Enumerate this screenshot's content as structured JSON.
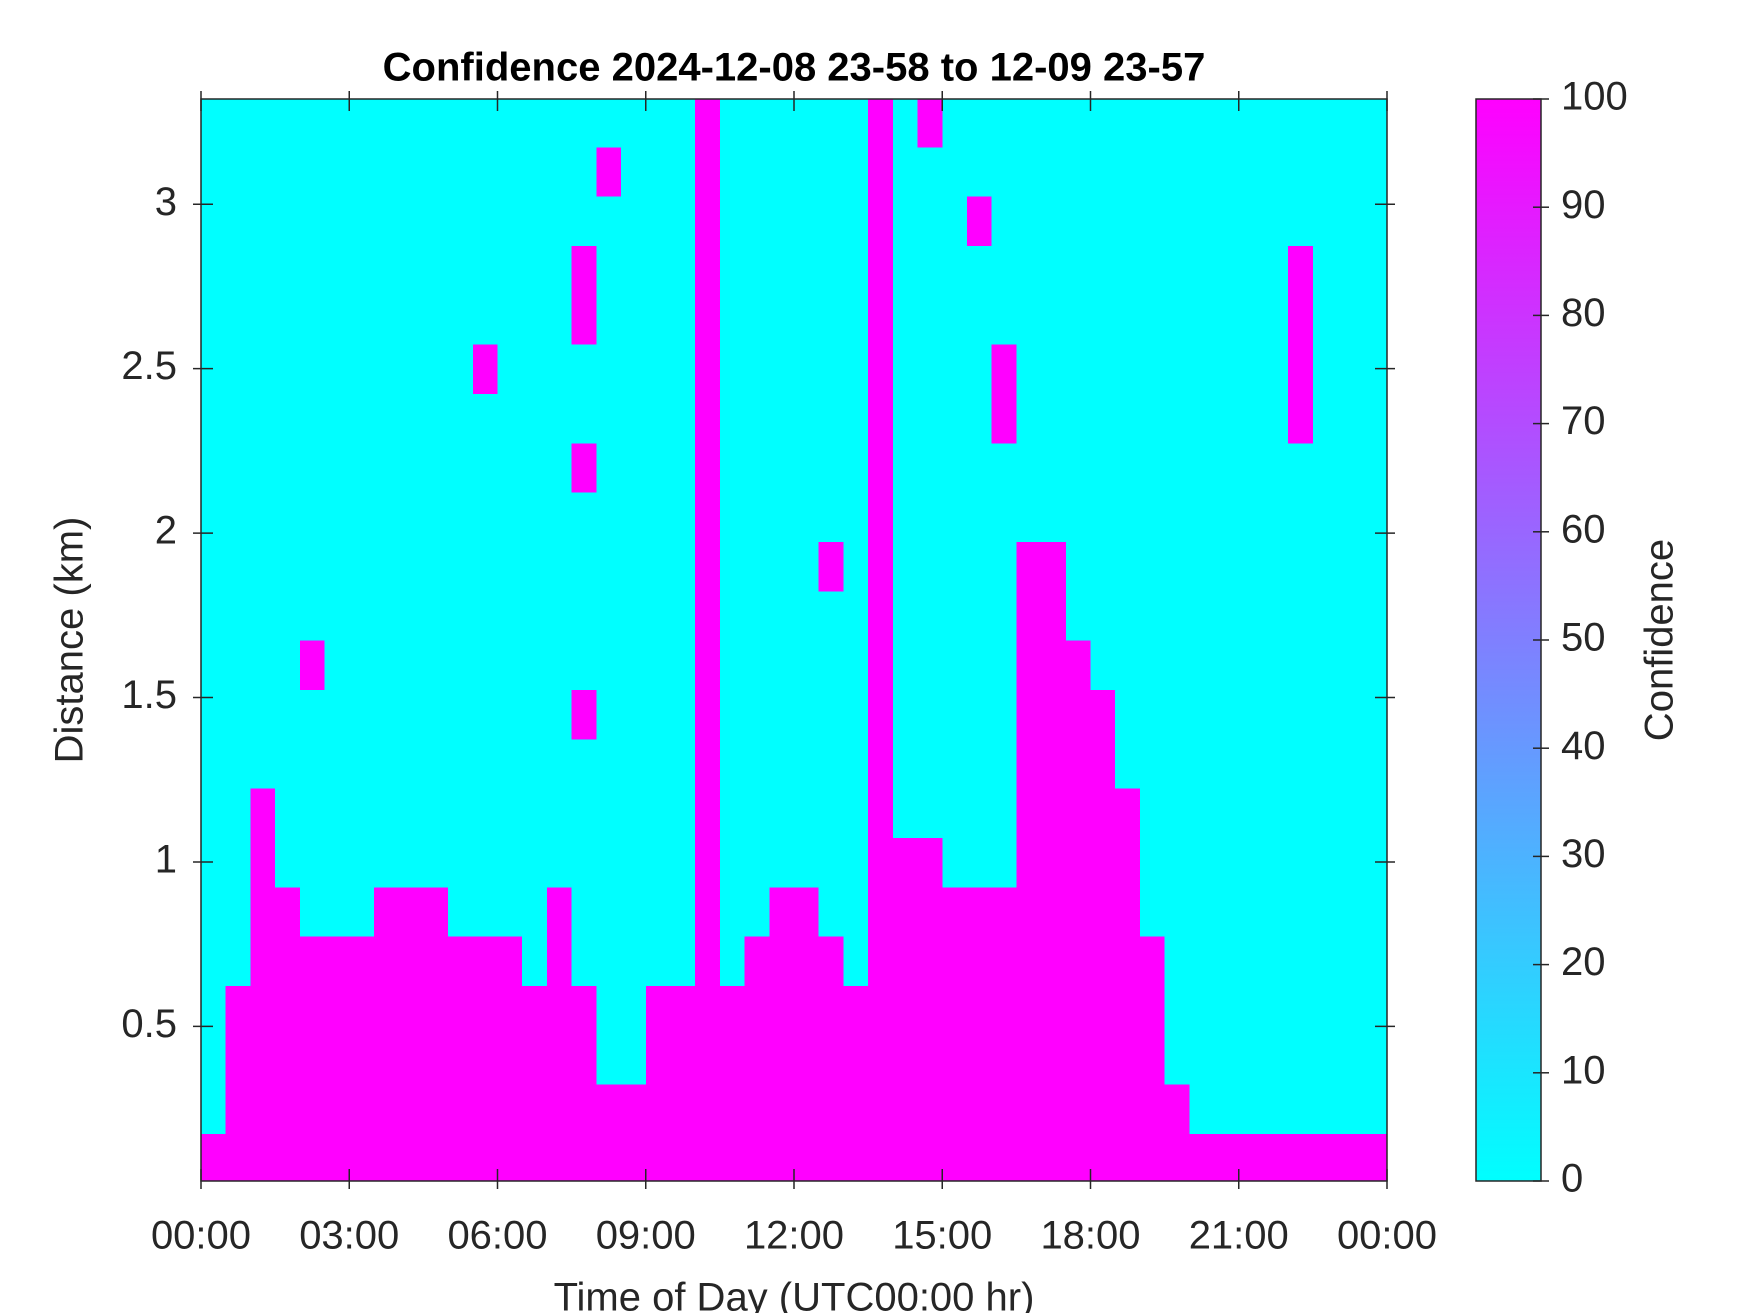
{
  "chart_data": {
    "type": "heatmap",
    "title": "Confidence 2024-12-08 23-58 to 12-09 23-57",
    "xlabel": "Time of Day (UTC00:00 hr)",
    "ylabel": "Distance (km)",
    "colorbar_label": "Confidence",
    "colormap": [
      "#00ffff",
      "#ff00ff"
    ],
    "clim": [
      0,
      100
    ],
    "cticks": [
      0,
      10,
      20,
      30,
      40,
      50,
      60,
      70,
      80,
      90,
      100
    ],
    "xlim": [
      0,
      24
    ],
    "xticks": [
      {
        "value": 0,
        "label": "00:00"
      },
      {
        "value": 3,
        "label": "03:00"
      },
      {
        "value": 6,
        "label": "06:00"
      },
      {
        "value": 9,
        "label": "09:00"
      },
      {
        "value": 12,
        "label": "12:00"
      },
      {
        "value": 15,
        "label": "15:00"
      },
      {
        "value": 18,
        "label": "18:00"
      },
      {
        "value": 21,
        "label": "21:00"
      },
      {
        "value": 24,
        "label": "00:00"
      }
    ],
    "ylim": [
      0.03,
      3.32
    ],
    "yticks": [
      0.5,
      1,
      1.5,
      2,
      2.5,
      3
    ],
    "x": [
      0.25,
      0.75,
      1.25,
      1.75,
      2.25,
      2.75,
      3.25,
      3.75,
      4.25,
      4.75,
      5.25,
      5.75,
      6.25,
      6.75,
      7.25,
      7.75,
      8.25,
      8.75,
      9.25,
      9.75,
      10.25,
      10.75,
      11.25,
      11.75,
      12.25,
      12.75,
      13.25,
      13.75,
      14.25,
      14.75,
      15.25,
      15.75,
      16.25,
      16.75,
      17.25,
      17.75,
      18.25,
      18.75,
      19.25,
      19.75,
      20.25,
      20.75,
      21.25,
      21.75,
      22.25,
      22.75,
      23.25,
      23.75
    ],
    "y": [
      0.1,
      0.25,
      0.4,
      0.55,
      0.7,
      0.85,
      1.0,
      1.15,
      1.3,
      1.45,
      1.6,
      1.75,
      1.9,
      2.05,
      2.2,
      2.35,
      2.5,
      2.65,
      2.8,
      2.95,
      3.1,
      3.25
    ],
    "values": [
      [
        100,
        100,
        100,
        100,
        100,
        100,
        100,
        100,
        100,
        100,
        100,
        100,
        100,
        100,
        100,
        100,
        100,
        100,
        100,
        100,
        100,
        100,
        100,
        100,
        100,
        100,
        100,
        100,
        100,
        100,
        100,
        100,
        100,
        100,
        100,
        100,
        100,
        100,
        100,
        100,
        100,
        100,
        100,
        100,
        100,
        100,
        100,
        100
      ],
      [
        0,
        100,
        100,
        100,
        100,
        100,
        100,
        100,
        100,
        100,
        100,
        100,
        100,
        100,
        100,
        100,
        100,
        100,
        100,
        100,
        100,
        100,
        100,
        100,
        100,
        100,
        100,
        100,
        100,
        100,
        100,
        100,
        100,
        100,
        100,
        100,
        100,
        100,
        100,
        100,
        0,
        0,
        0,
        0,
        0,
        0,
        0,
        0
      ],
      [
        0,
        100,
        100,
        100,
        100,
        100,
        100,
        100,
        100,
        100,
        100,
        100,
        100,
        100,
        100,
        100,
        0,
        0,
        100,
        100,
        100,
        100,
        100,
        100,
        100,
        100,
        100,
        100,
        100,
        100,
        100,
        100,
        100,
        100,
        100,
        100,
        100,
        100,
        100,
        0,
        0,
        0,
        0,
        0,
        0,
        0,
        0,
        0
      ],
      [
        0,
        100,
        100,
        100,
        100,
        100,
        100,
        100,
        100,
        100,
        100,
        100,
        100,
        100,
        100,
        100,
        0,
        0,
        100,
        100,
        100,
        100,
        100,
        100,
        100,
        100,
        100,
        100,
        100,
        100,
        100,
        100,
        100,
        100,
        100,
        100,
        100,
        100,
        100,
        0,
        0,
        0,
        0,
        0,
        0,
        0,
        0,
        0
      ],
      [
        0,
        0,
        100,
        100,
        100,
        100,
        100,
        100,
        100,
        100,
        100,
        100,
        100,
        0,
        100,
        0,
        0,
        0,
        0,
        0,
        100,
        0,
        100,
        100,
        100,
        100,
        0,
        100,
        100,
        100,
        100,
        100,
        100,
        100,
        100,
        100,
        100,
        100,
        100,
        0,
        0,
        0,
        0,
        0,
        0,
        0,
        0,
        0
      ],
      [
        0,
        0,
        100,
        100,
        0,
        0,
        0,
        100,
        100,
        100,
        0,
        0,
        0,
        0,
        100,
        0,
        0,
        0,
        0,
        0,
        100,
        0,
        0,
        100,
        100,
        0,
        0,
        100,
        100,
        100,
        100,
        100,
        100,
        100,
        100,
        100,
        100,
        100,
        0,
        0,
        0,
        0,
        0,
        0,
        0,
        0,
        0,
        0
      ],
      [
        0,
        0,
        100,
        0,
        0,
        0,
        0,
        0,
        0,
        0,
        0,
        0,
        0,
        0,
        0,
        0,
        0,
        0,
        0,
        0,
        100,
        0,
        0,
        0,
        0,
        0,
        0,
        100,
        100,
        100,
        0,
        0,
        0,
        100,
        100,
        100,
        100,
        100,
        0,
        0,
        0,
        0,
        0,
        0,
        0,
        0,
        0,
        0
      ],
      [
        0,
        0,
        100,
        0,
        0,
        0,
        0,
        0,
        0,
        0,
        0,
        0,
        0,
        0,
        0,
        0,
        0,
        0,
        0,
        0,
        100,
        0,
        0,
        0,
        0,
        0,
        0,
        100,
        0,
        0,
        0,
        0,
        0,
        100,
        100,
        100,
        100,
        100,
        0,
        0,
        0,
        0,
        0,
        0,
        0,
        0,
        0,
        0
      ],
      [
        0,
        0,
        0,
        0,
        0,
        0,
        0,
        0,
        0,
        0,
        0,
        0,
        0,
        0,
        0,
        0,
        0,
        0,
        0,
        0,
        100,
        0,
        0,
        0,
        0,
        0,
        0,
        100,
        0,
        0,
        0,
        0,
        0,
        100,
        100,
        100,
        100,
        0,
        0,
        0,
        0,
        0,
        0,
        0,
        0,
        0,
        0,
        0
      ],
      [
        0,
        0,
        0,
        0,
        0,
        0,
        0,
        0,
        0,
        0,
        0,
        0,
        0,
        0,
        0,
        100,
        0,
        0,
        0,
        0,
        100,
        0,
        0,
        0,
        0,
        0,
        0,
        100,
        0,
        0,
        0,
        0,
        0,
        100,
        100,
        100,
        100,
        0,
        0,
        0,
        0,
        0,
        0,
        0,
        0,
        0,
        0,
        0
      ],
      [
        0,
        0,
        0,
        0,
        100,
        0,
        0,
        0,
        0,
        0,
        0,
        0,
        0,
        0,
        0,
        0,
        0,
        0,
        0,
        0,
        100,
        0,
        0,
        0,
        0,
        0,
        0,
        100,
        0,
        0,
        0,
        0,
        0,
        100,
        100,
        100,
        0,
        0,
        0,
        0,
        0,
        0,
        0,
        0,
        0,
        0,
        0,
        0
      ],
      [
        0,
        0,
        0,
        0,
        0,
        0,
        0,
        0,
        0,
        0,
        0,
        0,
        0,
        0,
        0,
        0,
        0,
        0,
        0,
        0,
        100,
        0,
        0,
        0,
        0,
        0,
        0,
        100,
        0,
        0,
        0,
        0,
        0,
        100,
        100,
        0,
        0,
        0,
        0,
        0,
        0,
        0,
        0,
        0,
        0,
        0,
        0,
        0
      ],
      [
        0,
        0,
        0,
        0,
        0,
        0,
        0,
        0,
        0,
        0,
        0,
        0,
        0,
        0,
        0,
        0,
        0,
        0,
        0,
        0,
        100,
        0,
        0,
        0,
        0,
        100,
        0,
        100,
        0,
        0,
        0,
        0,
        0,
        100,
        100,
        0,
        0,
        0,
        0,
        0,
        0,
        0,
        0,
        0,
        0,
        0,
        0,
        0
      ],
      [
        0,
        0,
        0,
        0,
        0,
        0,
        0,
        0,
        0,
        0,
        0,
        0,
        0,
        0,
        0,
        0,
        0,
        0,
        0,
        0,
        100,
        0,
        0,
        0,
        0,
        0,
        0,
        100,
        0,
        0,
        0,
        0,
        0,
        0,
        0,
        0,
        0,
        0,
        0,
        0,
        0,
        0,
        0,
        0,
        0,
        0,
        0,
        0
      ],
      [
        0,
        0,
        0,
        0,
        0,
        0,
        0,
        0,
        0,
        0,
        0,
        0,
        0,
        0,
        0,
        100,
        0,
        0,
        0,
        0,
        100,
        0,
        0,
        0,
        0,
        0,
        0,
        100,
        0,
        0,
        0,
        0,
        0,
        0,
        0,
        0,
        0,
        0,
        0,
        0,
        0,
        0,
        0,
        0,
        0,
        0,
        0,
        0
      ],
      [
        0,
        0,
        0,
        0,
        0,
        0,
        0,
        0,
        0,
        0,
        0,
        0,
        0,
        0,
        0,
        0,
        0,
        0,
        0,
        0,
        100,
        0,
        0,
        0,
        0,
        0,
        0,
        100,
        0,
        0,
        0,
        0,
        100,
        0,
        0,
        0,
        0,
        0,
        0,
        0,
        0,
        0,
        0,
        0,
        100,
        0,
        0,
        0
      ],
      [
        0,
        0,
        0,
        0,
        0,
        0,
        0,
        0,
        0,
        0,
        0,
        100,
        0,
        0,
        0,
        0,
        0,
        0,
        0,
        0,
        100,
        0,
        0,
        0,
        0,
        0,
        0,
        100,
        0,
        0,
        0,
        0,
        100,
        0,
        0,
        0,
        0,
        0,
        0,
        0,
        0,
        0,
        0,
        0,
        100,
        0,
        0,
        0
      ],
      [
        0,
        0,
        0,
        0,
        0,
        0,
        0,
        0,
        0,
        0,
        0,
        0,
        0,
        0,
        0,
        100,
        0,
        0,
        0,
        0,
        100,
        0,
        0,
        0,
        0,
        0,
        0,
        100,
        0,
        0,
        0,
        0,
        0,
        0,
        0,
        0,
        0,
        0,
        0,
        0,
        0,
        0,
        0,
        0,
        100,
        0,
        0,
        0
      ],
      [
        0,
        0,
        0,
        0,
        0,
        0,
        0,
        0,
        0,
        0,
        0,
        0,
        0,
        0,
        0,
        100,
        0,
        0,
        0,
        0,
        100,
        0,
        0,
        0,
        0,
        0,
        0,
        100,
        0,
        0,
        0,
        0,
        0,
        0,
        0,
        0,
        0,
        0,
        0,
        0,
        0,
        0,
        0,
        0,
        100,
        0,
        0,
        0
      ],
      [
        0,
        0,
        0,
        0,
        0,
        0,
        0,
        0,
        0,
        0,
        0,
        0,
        0,
        0,
        0,
        0,
        0,
        0,
        0,
        0,
        100,
        0,
        0,
        0,
        0,
        0,
        0,
        100,
        0,
        0,
        0,
        100,
        0,
        0,
        0,
        0,
        0,
        0,
        0,
        0,
        0,
        0,
        0,
        0,
        0,
        0,
        0,
        0
      ],
      [
        0,
        0,
        0,
        0,
        0,
        0,
        0,
        0,
        0,
        0,
        0,
        0,
        0,
        0,
        0,
        0,
        100,
        0,
        0,
        0,
        100,
        0,
        0,
        0,
        0,
        0,
        0,
        100,
        0,
        0,
        0,
        0,
        0,
        0,
        0,
        0,
        0,
        0,
        0,
        0,
        0,
        0,
        0,
        0,
        0,
        0,
        0,
        0
      ],
      [
        0,
        0,
        0,
        0,
        0,
        0,
        0,
        0,
        0,
        0,
        0,
        0,
        0,
        0,
        0,
        0,
        0,
        0,
        0,
        0,
        100,
        0,
        0,
        0,
        0,
        0,
        0,
        100,
        0,
        100,
        0,
        0,
        0,
        0,
        0,
        0,
        0,
        0,
        0,
        0,
        0,
        0,
        0,
        0,
        0,
        0,
        0,
        0
      ]
    ]
  }
}
